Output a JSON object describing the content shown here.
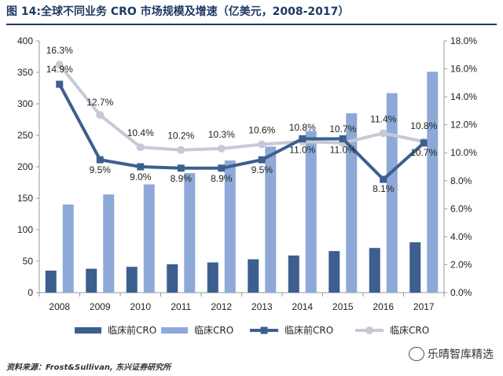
{
  "title": "图 14:全球不同业务 CRO 市场规模及增速（亿美元，2008-2017）",
  "source": "资料来源：Frost&Sullivan, 东兴证券研究所",
  "watermark": "乐晴智库精选",
  "chart_data": {
    "type": "bar+line",
    "categories": [
      "2008",
      "2009",
      "2010",
      "2011",
      "2012",
      "2013",
      "2014",
      "2015",
      "2016",
      "2017"
    ],
    "left_axis": {
      "min": 0,
      "max": 400,
      "ticks": [
        0,
        50,
        100,
        150,
        200,
        250,
        300,
        350,
        400
      ]
    },
    "right_axis": {
      "min": 0,
      "max": 18,
      "ticks": [
        "0.0%",
        "2.0%",
        "4.0%",
        "6.0%",
        "8.0%",
        "10.0%",
        "12.0%",
        "14.0%",
        "16.0%",
        "18.0%"
      ]
    },
    "bar_series": [
      {
        "name": "临床前CRO",
        "color": "#3d5f8f",
        "values": [
          35,
          38,
          41,
          45,
          48,
          53,
          59,
          66,
          71,
          80
        ]
      },
      {
        "name": "临床CRO",
        "color": "#8ea9d8",
        "values": [
          140,
          156,
          172,
          190,
          210,
          232,
          257,
          285,
          317,
          351
        ]
      }
    ],
    "line_series": [
      {
        "name": "临床前CRO",
        "color": "#3d5f8f",
        "values": [
          14.9,
          9.5,
          9.0,
          8.9,
          8.9,
          9.5,
          11.0,
          11.0,
          8.1,
          10.7
        ],
        "labels": [
          "14.9%",
          "9.5%",
          "9.0%",
          "8.9%",
          "8.9%",
          "9.5%",
          "11.0%",
          "11.0%",
          "8.1%",
          "10.7%"
        ]
      },
      {
        "name": "临床CRO",
        "color": "#c5cad6",
        "values": [
          16.3,
          12.7,
          10.4,
          10.2,
          10.3,
          10.6,
          10.8,
          10.7,
          11.4,
          10.8
        ],
        "labels": [
          "16.3%",
          "12.7%",
          "10.4%",
          "10.2%",
          "10.3%",
          "10.6%",
          "10.8%",
          "10.7%",
          "11.4%",
          "10.8%"
        ]
      }
    ],
    "legend": [
      "临床前CRO",
      "临床CRO",
      "临床前CRO",
      "临床CRO"
    ]
  }
}
